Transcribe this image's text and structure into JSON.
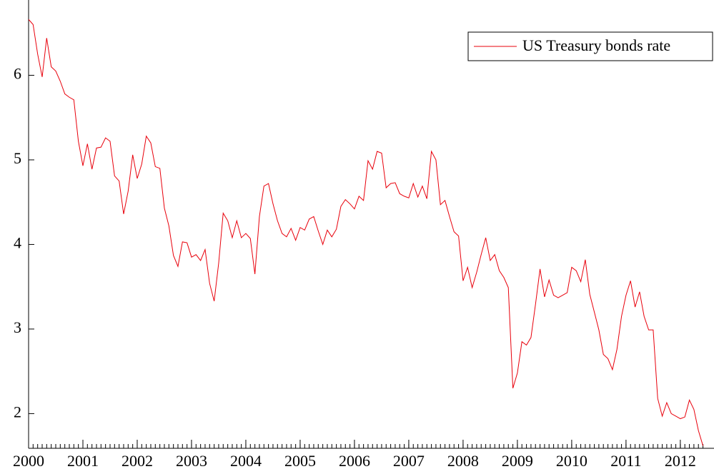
{
  "chart_data": {
    "type": "line",
    "x": [
      2000.0,
      2000.083,
      2000.167,
      2000.25,
      2000.333,
      2000.417,
      2000.5,
      2000.583,
      2000.667,
      2000.75,
      2000.833,
      2000.917,
      2001.0,
      2001.083,
      2001.167,
      2001.25,
      2001.333,
      2001.417,
      2001.5,
      2001.583,
      2001.667,
      2001.75,
      2001.833,
      2001.917,
      2002.0,
      2002.083,
      2002.167,
      2002.25,
      2002.333,
      2002.417,
      2002.5,
      2002.583,
      2002.667,
      2002.75,
      2002.833,
      2002.917,
      2003.0,
      2003.083,
      2003.167,
      2003.25,
      2003.333,
      2003.417,
      2003.5,
      2003.583,
      2003.667,
      2003.75,
      2003.833,
      2003.917,
      2004.0,
      2004.083,
      2004.167,
      2004.25,
      2004.333,
      2004.417,
      2004.5,
      2004.583,
      2004.667,
      2004.75,
      2004.833,
      2004.917,
      2005.0,
      2005.083,
      2005.167,
      2005.25,
      2005.333,
      2005.417,
      2005.5,
      2005.583,
      2005.667,
      2005.75,
      2005.833,
      2005.917,
      2006.0,
      2006.083,
      2006.167,
      2006.25,
      2006.333,
      2006.417,
      2006.5,
      2006.583,
      2006.667,
      2006.75,
      2006.833,
      2006.917,
      2007.0,
      2007.083,
      2007.167,
      2007.25,
      2007.333,
      2007.417,
      2007.5,
      2007.583,
      2007.667,
      2007.75,
      2007.833,
      2007.917,
      2008.0,
      2008.083,
      2008.167,
      2008.25,
      2008.333,
      2008.417,
      2008.5,
      2008.583,
      2008.667,
      2008.75,
      2008.833,
      2008.917,
      2009.0,
      2009.083,
      2009.167,
      2009.25,
      2009.333,
      2009.417,
      2009.5,
      2009.583,
      2009.667,
      2009.75,
      2009.833,
      2009.917,
      2010.0,
      2010.083,
      2010.167,
      2010.25,
      2010.333,
      2010.417,
      2010.5,
      2010.583,
      2010.667,
      2010.75,
      2010.833,
      2010.917,
      2011.0,
      2011.083,
      2011.167,
      2011.25,
      2011.333,
      2011.417,
      2011.5,
      2011.583,
      2011.667,
      2011.75,
      2011.833,
      2011.917,
      2012.0,
      2012.083,
      2012.167,
      2012.25,
      2012.333,
      2012.417
    ],
    "series": [
      {
        "name": "US Treasury bonds rate",
        "color": "#e8000b",
        "values": [
          6.66,
          6.6,
          6.25,
          5.98,
          6.44,
          6.1,
          6.05,
          5.93,
          5.78,
          5.74,
          5.71,
          5.22,
          4.93,
          5.19,
          4.89,
          5.14,
          5.15,
          5.26,
          5.22,
          4.81,
          4.75,
          4.36,
          4.63,
          5.06,
          4.78,
          4.95,
          5.28,
          5.2,
          4.92,
          4.9,
          4.43,
          4.22,
          3.87,
          3.74,
          4.03,
          4.02,
          3.85,
          3.88,
          3.81,
          3.94,
          3.54,
          3.33,
          3.78,
          4.37,
          4.28,
          4.08,
          4.28,
          4.08,
          4.13,
          4.07,
          3.65,
          4.33,
          4.69,
          4.72,
          4.48,
          4.28,
          4.13,
          4.09,
          4.19,
          4.05,
          4.2,
          4.17,
          4.3,
          4.33,
          4.16,
          4.0,
          4.17,
          4.09,
          4.18,
          4.45,
          4.53,
          4.48,
          4.42,
          4.57,
          4.52,
          4.99,
          4.89,
          5.1,
          5.08,
          4.67,
          4.72,
          4.73,
          4.6,
          4.57,
          4.55,
          4.72,
          4.56,
          4.69,
          4.54,
          5.1,
          5.0,
          4.47,
          4.52,
          4.33,
          4.15,
          4.1,
          3.57,
          3.73,
          3.49,
          3.67,
          3.88,
          4.08,
          3.81,
          3.88,
          3.69,
          3.61,
          3.49,
          2.3,
          2.48,
          2.85,
          2.81,
          2.9,
          3.29,
          3.71,
          3.38,
          3.58,
          3.4,
          3.37,
          3.4,
          3.43,
          3.73,
          3.69,
          3.56,
          3.82,
          3.41,
          3.2,
          2.99,
          2.7,
          2.65,
          2.52,
          2.76,
          3.15,
          3.4,
          3.57,
          3.26,
          3.44,
          3.15,
          2.99,
          2.99,
          2.18,
          1.97,
          2.13,
          2.0,
          1.97,
          1.94,
          1.96,
          2.16,
          2.05,
          1.8,
          1.62
        ]
      }
    ],
    "xlim": [
      2000,
      2012.62
    ],
    "xticks": [
      2000,
      2001,
      2002,
      2003,
      2004,
      2005,
      2006,
      2007,
      2008,
      2009,
      2010,
      2011,
      2012
    ],
    "ylim": [
      1.59,
      6.89
    ],
    "yticks": [
      2,
      3,
      4,
      5,
      6
    ],
    "legend": "top-right"
  }
}
